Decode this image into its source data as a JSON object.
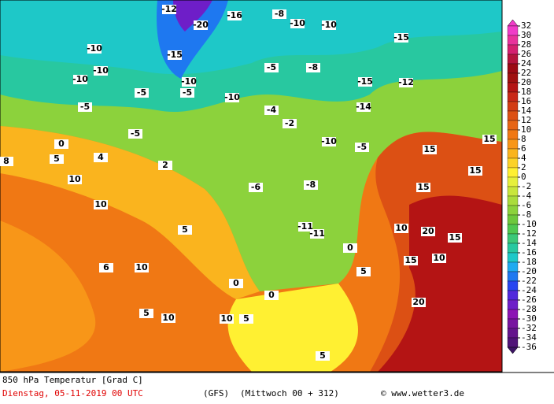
{
  "map": {
    "title": "850 hPa Temperatur [Grad C]",
    "date": "Dienstag, 05-11-2019  00 UTC",
    "model": "(GFS)",
    "run": "(Mittwoch 00 + 312)",
    "credit": "© www.wetter3.de",
    "scale": {
      "ticks": [
        32,
        30,
        28,
        26,
        24,
        22,
        20,
        18,
        16,
        14,
        12,
        10,
        8,
        6,
        4,
        2,
        0,
        -2,
        -4,
        -6,
        -8,
        -10,
        -12,
        -14,
        -16,
        -18,
        -20,
        -22,
        -24,
        -26,
        -28,
        -30,
        -32,
        -34,
        -36
      ],
      "colors": [
        "#f03cc8",
        "#e8329c",
        "#d42070",
        "#b4143c",
        "#9c0a14",
        "#a01010",
        "#b41414",
        "#c82818",
        "#d23c14",
        "#dc5014",
        "#e66414",
        "#f07814",
        "#f89618",
        "#fab41e",
        "#fcd228",
        "#fff032",
        "#e6f03c",
        "#c8e63c",
        "#aadc3c",
        "#8cd23c",
        "#6ec83c",
        "#50c850",
        "#3cc878",
        "#28c8a0",
        "#1ec8c8",
        "#1eaaf0",
        "#1e78f0",
        "#2846f0",
        "#5028dc",
        "#6e1ec8",
        "#8c14b4",
        "#7814a0",
        "#64148c",
        "#501478",
        "#3c1464"
      ]
    },
    "contour_labels": [
      -12,
      -20,
      -15,
      -10,
      -16,
      -10,
      -15,
      -8,
      -10,
      -10,
      -5,
      -5,
      -15,
      -10,
      -5,
      -5,
      -10,
      -5,
      -5,
      -10,
      -10,
      -8,
      0,
      5,
      10,
      10,
      5,
      0,
      0,
      5,
      10,
      10,
      5,
      10,
      15,
      15,
      20,
      15,
      10,
      15,
      20,
      15,
      10,
      15,
      -11,
      -11,
      0,
      5,
      5,
      -8,
      -6,
      -4,
      -2,
      2,
      4,
      6,
      8,
      -14,
      -12
    ]
  }
}
